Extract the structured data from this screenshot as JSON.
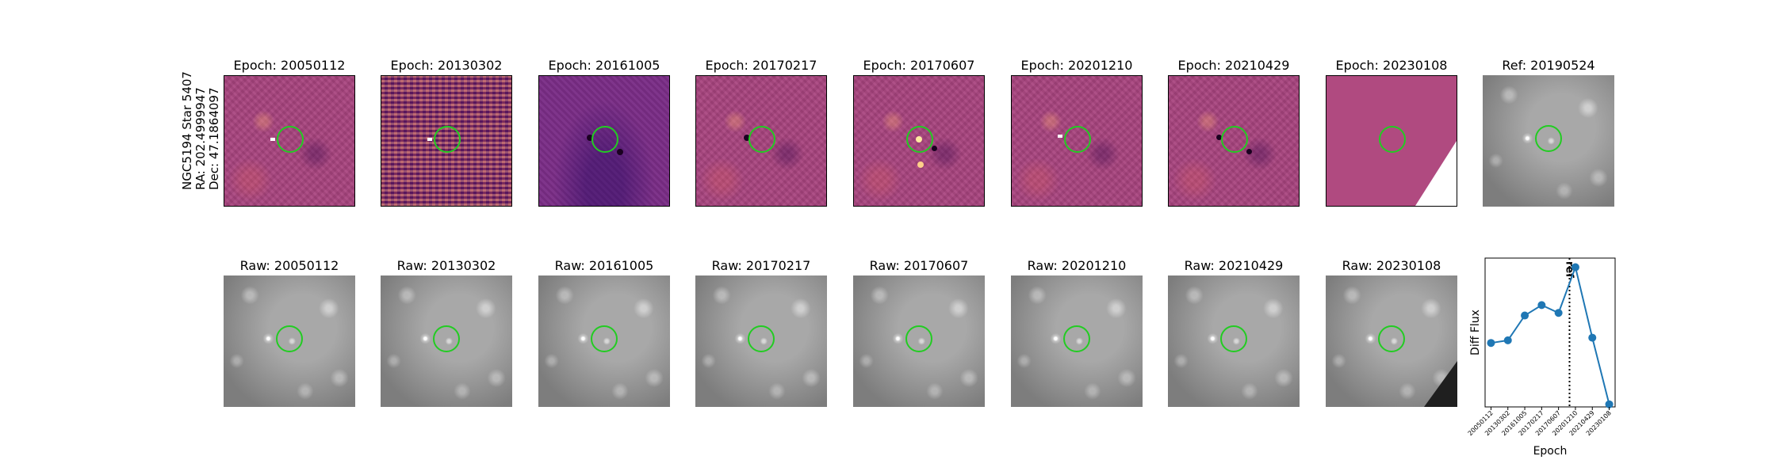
{
  "target": {
    "name": "NGC5194 Star 5407",
    "ra": "RA: 202.4999947",
    "dec": "Dec: 47.1864097"
  },
  "diff_panels": [
    {
      "title": "Epoch: 20050112"
    },
    {
      "title": "Epoch: 20130302"
    },
    {
      "title": "Epoch: 20161005"
    },
    {
      "title": "Epoch: 20170217"
    },
    {
      "title": "Epoch: 20170607"
    },
    {
      "title": "Epoch: 20201210"
    },
    {
      "title": "Epoch: 20210429"
    },
    {
      "title": "Epoch: 20230108"
    }
  ],
  "ref_panel": {
    "title": "Ref: 20190524"
  },
  "raw_panels": [
    {
      "title": "Raw: 20050112"
    },
    {
      "title": "Raw: 20130302"
    },
    {
      "title": "Raw: 20161005"
    },
    {
      "title": "Raw: 20170217"
    },
    {
      "title": "Raw: 20170607"
    },
    {
      "title": "Raw: 20201210"
    },
    {
      "title": "Raw: 20210429"
    },
    {
      "title": "Raw: 20230108"
    }
  ],
  "colors": {
    "aperture": "#22cc22",
    "series": "#1f77b4"
  },
  "chart_data": {
    "type": "line",
    "title": "",
    "xlabel": "Epoch",
    "ylabel": "Diff Flux",
    "categories": [
      "20050112",
      "20130302",
      "20161005",
      "20170217",
      "20170607",
      "20201210",
      "20210429",
      "20230108"
    ],
    "series": [
      {
        "values": [
          0.37,
          0.39,
          0.58,
          0.66,
          0.6,
          0.95,
          0.41,
          -0.1
        ]
      }
    ],
    "ylim": [
      -0.12,
      1.02
    ],
    "ref_line": {
      "position": 4.65,
      "label": "ref"
    },
    "grid": false
  }
}
